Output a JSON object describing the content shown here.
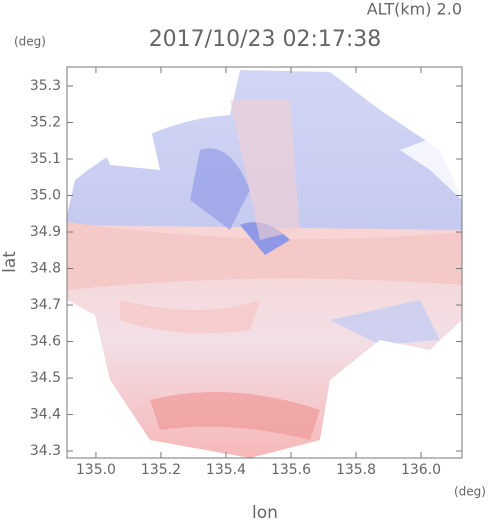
{
  "chart_data": {
    "type": "heatmap",
    "title": "2017/10/23 02:17:38",
    "subtitle": "ALT(km) 2.0",
    "x_label": "lon",
    "y_label": "lat",
    "x_unit": "(deg)",
    "y_unit": "(deg)",
    "xlim": [
      134.911,
      136.126
    ],
    "ylim": [
      34.281,
      35.352
    ],
    "xticks": [
      {
        "value": 135,
        "label": "135.0"
      },
      135.2,
      135.4,
      135.6,
      135.8,
      {
        "value": 136,
        "label": "136.0"
      }
    ],
    "yticks": [
      34.3,
      34.4,
      34.5,
      34.6,
      34.7,
      34.8,
      34.9,
      {
        "value": 35,
        "label": "35.0"
      },
      35.1,
      35.2,
      35.3
    ]
  }
}
